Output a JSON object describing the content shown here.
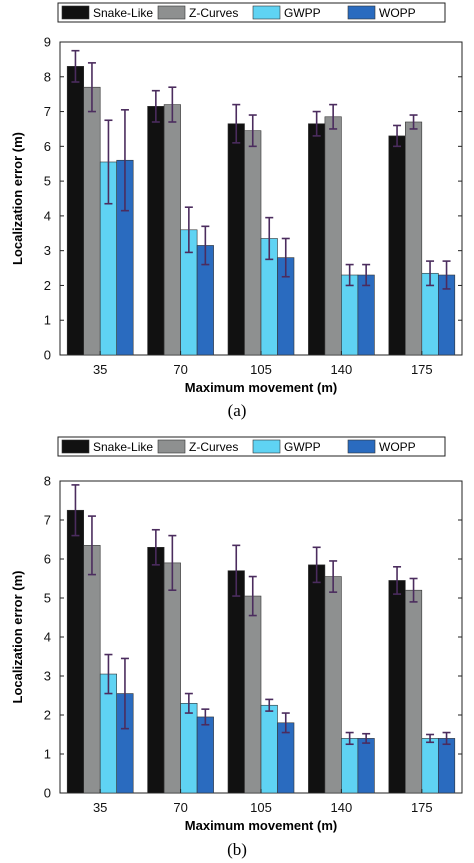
{
  "colors": {
    "Snake-Like": "#111111",
    "Z-Curves": "#8e9090",
    "GWPP": "#5fd3f3",
    "WOPP": "#2a6bbf",
    "error_bar": "#4b2c5e"
  },
  "chart_data": [
    {
      "type": "bar",
      "caption": "(a)",
      "xlabel": "Maximum movement (m)",
      "ylabel": "Localization error (m)",
      "categories": [
        "35",
        "70",
        "105",
        "140",
        "175"
      ],
      "ylim": [
        0,
        9
      ],
      "yticks": [
        "0",
        "1",
        "2",
        "3",
        "4",
        "5",
        "6",
        "7",
        "8",
        "9"
      ],
      "grid": false,
      "legend_position": "top",
      "series": [
        {
          "name": "Snake-Like",
          "values": [
            8.3,
            7.15,
            6.65,
            6.65,
            6.3
          ],
          "errors": [
            0.45,
            0.45,
            0.55,
            0.35,
            0.3
          ]
        },
        {
          "name": "Z-Curves",
          "values": [
            7.7,
            7.2,
            6.45,
            6.85,
            6.7
          ],
          "errors": [
            0.7,
            0.5,
            0.45,
            0.35,
            0.2
          ]
        },
        {
          "name": "GWPP",
          "values": [
            5.55,
            3.6,
            3.35,
            2.3,
            2.35
          ],
          "errors": [
            1.2,
            0.65,
            0.6,
            0.3,
            0.35
          ]
        },
        {
          "name": "WOPP",
          "values": [
            5.6,
            3.15,
            2.8,
            2.3,
            2.3
          ],
          "errors": [
            1.45,
            0.55,
            0.55,
            0.3,
            0.4
          ]
        }
      ]
    },
    {
      "type": "bar",
      "caption": "(b)",
      "xlabel": "Maximum movement (m)",
      "ylabel": "Localization error (m)",
      "categories": [
        "35",
        "70",
        "105",
        "140",
        "175"
      ],
      "ylim": [
        0,
        8
      ],
      "yticks": [
        "0",
        "1",
        "2",
        "3",
        "4",
        "5",
        "6",
        "7",
        "8"
      ],
      "grid": false,
      "legend_position": "top",
      "series": [
        {
          "name": "Snake-Like",
          "values": [
            7.25,
            6.3,
            5.7,
            5.85,
            5.45
          ],
          "errors": [
            0.65,
            0.45,
            0.65,
            0.45,
            0.35
          ]
        },
        {
          "name": "Z-Curves",
          "values": [
            6.35,
            5.9,
            5.05,
            5.55,
            5.2
          ],
          "errors": [
            0.75,
            0.7,
            0.5,
            0.4,
            0.3
          ]
        },
        {
          "name": "GWPP",
          "values": [
            3.05,
            2.3,
            2.25,
            1.4,
            1.4
          ],
          "errors": [
            0.5,
            0.25,
            0.15,
            0.15,
            0.1
          ]
        },
        {
          "name": "WOPP",
          "values": [
            2.55,
            1.95,
            1.8,
            1.4,
            1.4
          ],
          "errors": [
            0.9,
            0.2,
            0.25,
            0.12,
            0.15
          ]
        }
      ]
    }
  ]
}
